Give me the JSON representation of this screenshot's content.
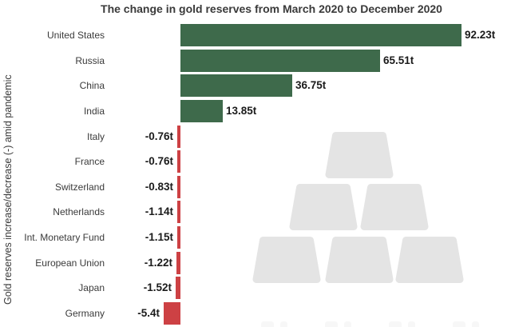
{
  "chart_data": {
    "type": "bar",
    "orientation": "horizontal",
    "title": "The change in gold reserves from March 2020 to December 2020",
    "xlabel": "",
    "ylabel": "Gold reserves increase/decrease (-) amid pandemic",
    "unit": "t",
    "categories": [
      "United States",
      "Russia",
      "China",
      "India",
      "Italy",
      "France",
      "Switzerland",
      "Netherlands",
      "Int. Monetary Fund",
      "European Union",
      "Japan",
      "Germany"
    ],
    "values": [
      92.23,
      65.51,
      36.75,
      13.85,
      -0.76,
      -0.76,
      -0.83,
      -1.14,
      -1.15,
      -1.22,
      -1.52,
      -5.4
    ],
    "value_labels": [
      "92.23t",
      "65.51t",
      "36.75t",
      "13.85t",
      "-0.76t",
      "-0.76t",
      "-0.83t",
      "-1.14t",
      "-1.15t",
      "-1.22t",
      "-1.52t",
      "-5.4t"
    ],
    "xlim": [
      -5.4,
      92.23
    ],
    "grid": false,
    "legend": "none",
    "value_labels_shown": true,
    "colors": {
      "positive_bar": "#3e6a4b",
      "negative_bar": "#cd4144",
      "text": "#3a3a3a",
      "value_text": "#1b1b1b",
      "background": "#ffffff"
    }
  },
  "watermark": {
    "description": "pyramid of six gold ingots",
    "color": "#e4e4e4",
    "reflection_color": "#f7f7f7"
  }
}
